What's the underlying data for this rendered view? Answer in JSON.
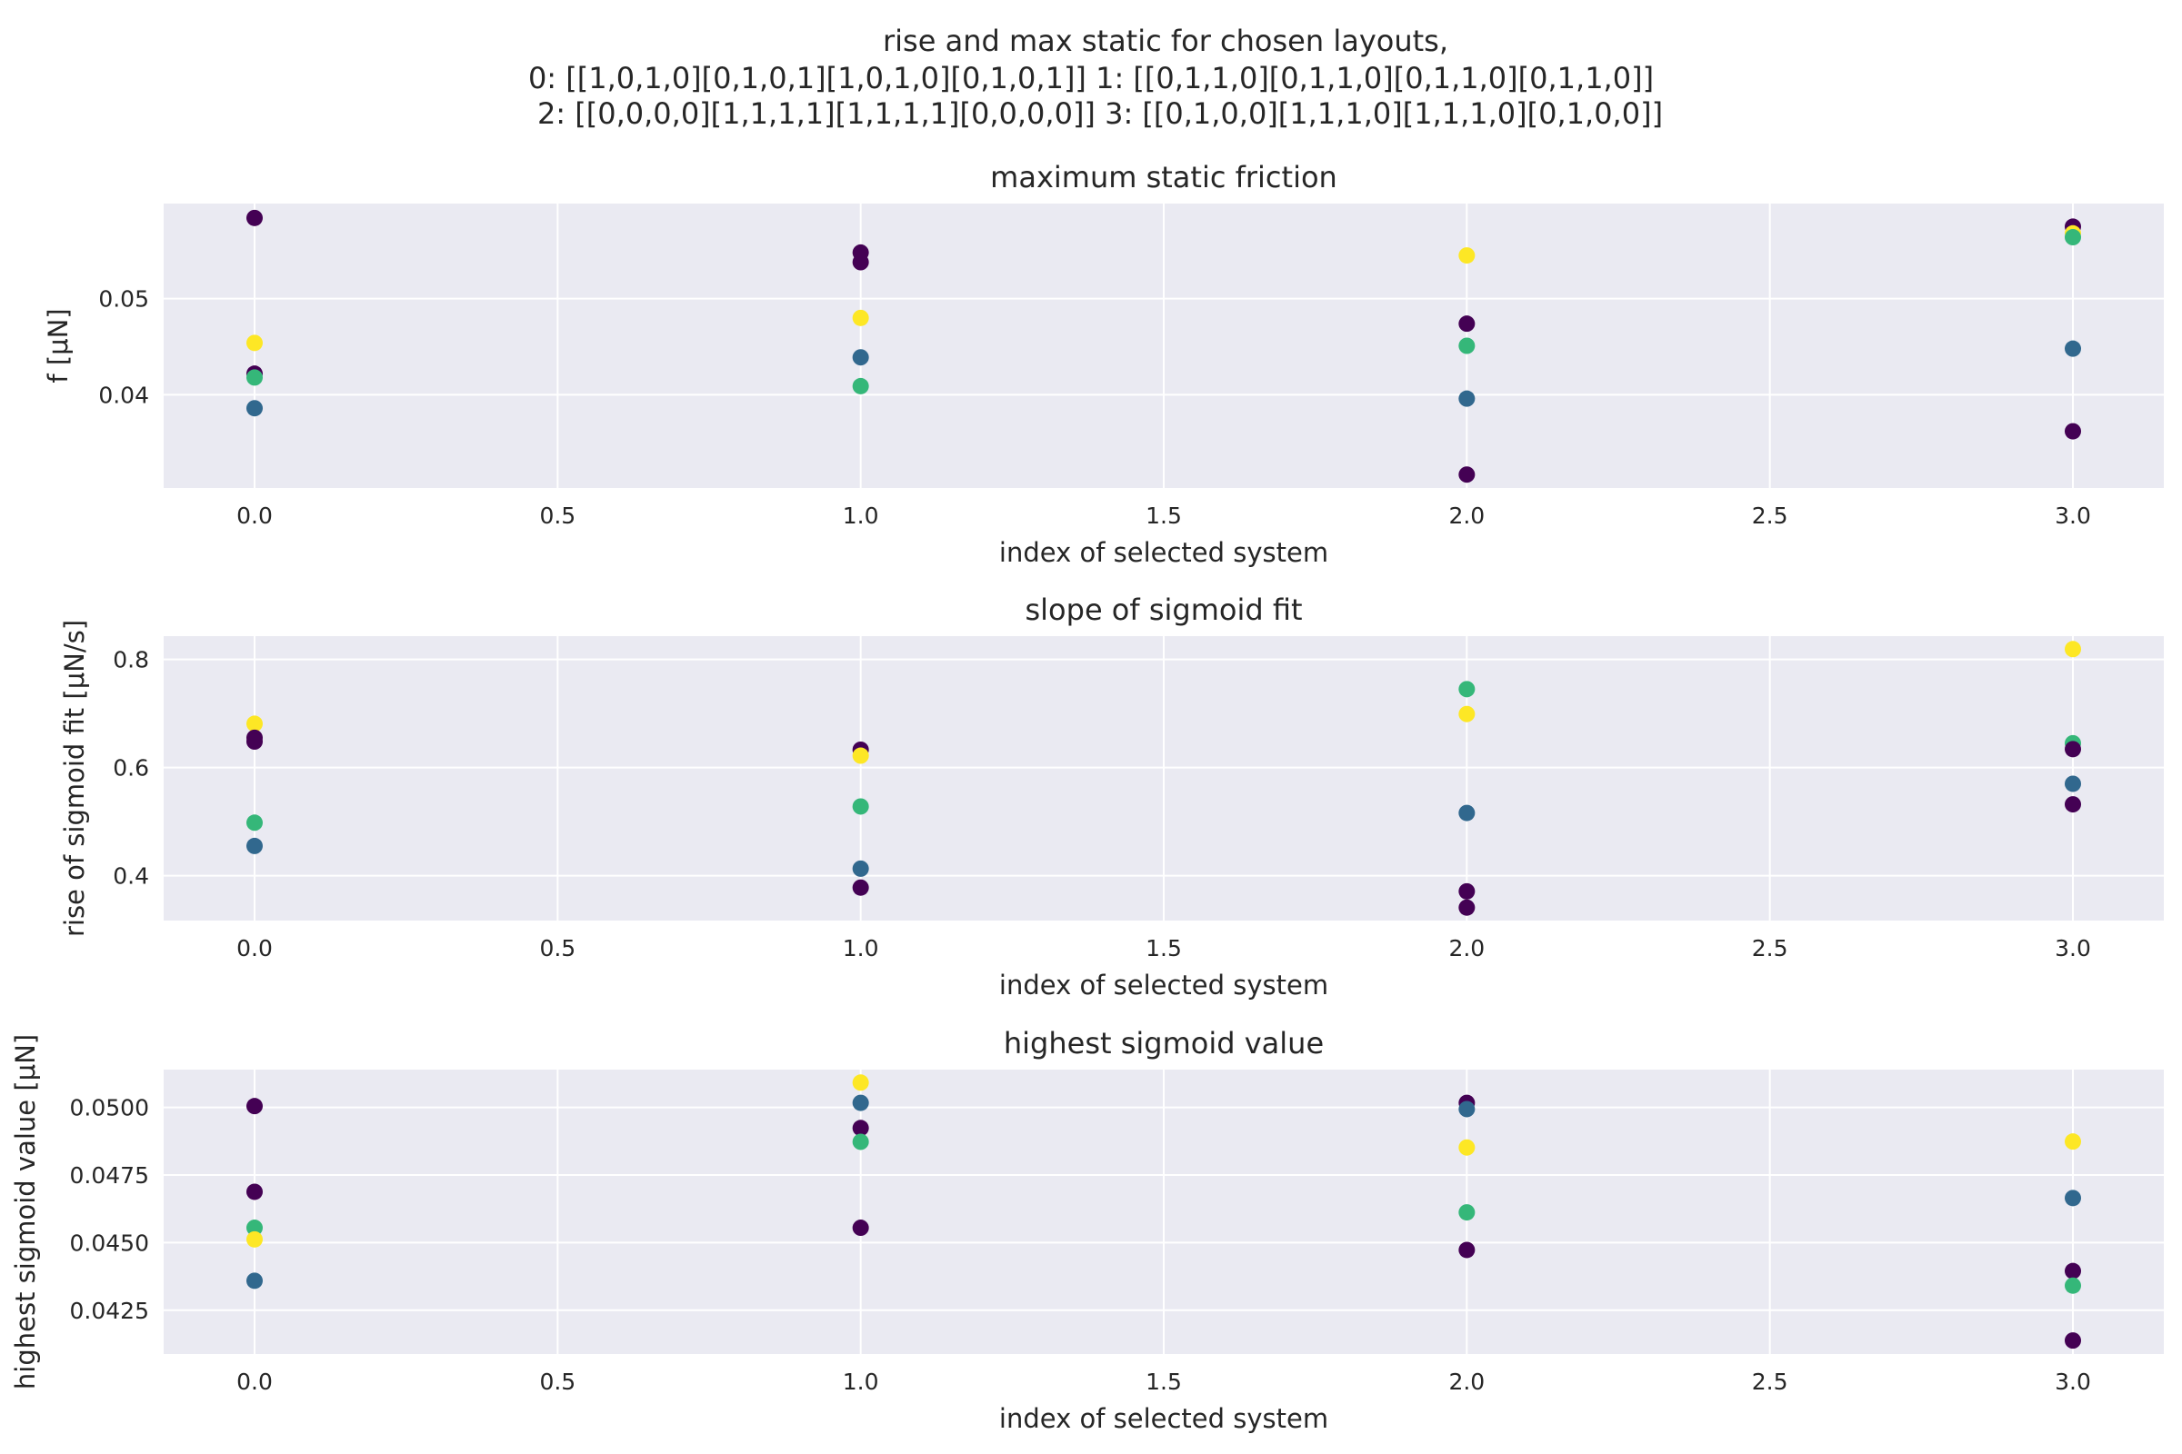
{
  "suptitle": [
    "rise and max static for chosen layouts,",
    "0: [[1,0,1,0][0,1,0,1][1,0,1,0][0,1,0,1]] 1: [[0,1,1,0][0,1,1,0][0,1,1,0][0,1,1,0]]",
    "2: [[0,0,0,0][1,1,1,1][1,1,1,1][0,0,0,0]] 3: [[0,1,0,0][1,1,1,0][1,1,1,0][0,1,0,0]]"
  ],
  "colors": {
    "axes_bg": "#eaeaf2",
    "grid": "#ffffff",
    "c0": "#440154",
    "c1": "#31688e",
    "c2": "#35b779",
    "c3": "#fde725"
  },
  "chart_data": [
    {
      "type": "scatter",
      "title": "maximum static friction",
      "xlabel": "index of selected system",
      "ylabel": "f [μN]",
      "xlim": [
        -0.15,
        3.15
      ],
      "ylim": [
        0.0303,
        0.0599
      ],
      "xticks": [
        "0.0",
        "0.5",
        "1.0",
        "1.5",
        "2.0",
        "2.5",
        "3.0"
      ],
      "yticks": [
        "0.04",
        "0.05"
      ],
      "grid": true,
      "points": [
        {
          "x": 0,
          "y": 0.0584,
          "c": "c0"
        },
        {
          "x": 0,
          "y": 0.0454,
          "c": "c3"
        },
        {
          "x": 0,
          "y": 0.0422,
          "c": "c0"
        },
        {
          "x": 0,
          "y": 0.0418,
          "c": "c2"
        },
        {
          "x": 0,
          "y": 0.0386,
          "c": "c1"
        },
        {
          "x": 1,
          "y": 0.0548,
          "c": "c0"
        },
        {
          "x": 1,
          "y": 0.0538,
          "c": "c0"
        },
        {
          "x": 1,
          "y": 0.048,
          "c": "c3"
        },
        {
          "x": 1,
          "y": 0.0439,
          "c": "c1"
        },
        {
          "x": 1,
          "y": 0.0409,
          "c": "c2"
        },
        {
          "x": 2,
          "y": 0.0545,
          "c": "c3"
        },
        {
          "x": 2,
          "y": 0.0474,
          "c": "c0"
        },
        {
          "x": 2,
          "y": 0.0451,
          "c": "c2"
        },
        {
          "x": 2,
          "y": 0.0396,
          "c": "c1"
        },
        {
          "x": 2,
          "y": 0.0317,
          "c": "c0"
        },
        {
          "x": 3,
          "y": 0.0575,
          "c": "c0"
        },
        {
          "x": 3,
          "y": 0.0568,
          "c": "c3"
        },
        {
          "x": 3,
          "y": 0.0564,
          "c": "c2"
        },
        {
          "x": 3,
          "y": 0.0448,
          "c": "c1"
        },
        {
          "x": 3,
          "y": 0.0362,
          "c": "c0"
        }
      ]
    },
    {
      "type": "scatter",
      "title": "slope of sigmoid fit",
      "xlabel": "index of selected system",
      "ylabel": "rise of sigmoid fit [μN/s]",
      "xlim": [
        -0.15,
        3.15
      ],
      "ylim": [
        0.317,
        0.843
      ],
      "xticks": [
        "0.0",
        "0.5",
        "1.0",
        "1.5",
        "2.0",
        "2.5",
        "3.0"
      ],
      "yticks": [
        "0.4",
        "0.6",
        "0.8"
      ],
      "grid": true,
      "points": [
        {
          "x": 0,
          "y": 0.681,
          "c": "c3"
        },
        {
          "x": 0,
          "y": 0.655,
          "c": "c0"
        },
        {
          "x": 0,
          "y": 0.648,
          "c": "c0"
        },
        {
          "x": 0,
          "y": 0.498,
          "c": "c2"
        },
        {
          "x": 0,
          "y": 0.455,
          "c": "c1"
        },
        {
          "x": 1,
          "y": 0.633,
          "c": "c0"
        },
        {
          "x": 1,
          "y": 0.622,
          "c": "c3"
        },
        {
          "x": 1,
          "y": 0.528,
          "c": "c2"
        },
        {
          "x": 1,
          "y": 0.413,
          "c": "c1"
        },
        {
          "x": 1,
          "y": 0.378,
          "c": "c0"
        },
        {
          "x": 2,
          "y": 0.745,
          "c": "c2"
        },
        {
          "x": 2,
          "y": 0.699,
          "c": "c3"
        },
        {
          "x": 2,
          "y": 0.516,
          "c": "c1"
        },
        {
          "x": 2,
          "y": 0.371,
          "c": "c0"
        },
        {
          "x": 2,
          "y": 0.341,
          "c": "c0"
        },
        {
          "x": 3,
          "y": 0.819,
          "c": "c3"
        },
        {
          "x": 3,
          "y": 0.645,
          "c": "c2"
        },
        {
          "x": 3,
          "y": 0.634,
          "c": "c0"
        },
        {
          "x": 3,
          "y": 0.57,
          "c": "c1"
        },
        {
          "x": 3,
          "y": 0.532,
          "c": "c0"
        }
      ]
    },
    {
      "type": "scatter",
      "title": "highest sigmoid value",
      "xlabel": "index of selected system",
      "ylabel": "highest sigmoid value [μN]",
      "xlim": [
        -0.15,
        3.15
      ],
      "ylim": [
        0.04088,
        0.0514
      ],
      "xticks": [
        "0.0",
        "0.5",
        "1.0",
        "1.5",
        "2.0",
        "2.5",
        "3.0"
      ],
      "yticks": [
        "0.0425",
        "0.0450",
        "0.0475",
        "0.0500"
      ],
      "grid": true,
      "points": [
        {
          "x": 0,
          "y": 0.05005,
          "c": "c0"
        },
        {
          "x": 0,
          "y": 0.04688,
          "c": "c0"
        },
        {
          "x": 0,
          "y": 0.04555,
          "c": "c2"
        },
        {
          "x": 0,
          "y": 0.04512,
          "c": "c3"
        },
        {
          "x": 0,
          "y": 0.04359,
          "c": "c1"
        },
        {
          "x": 1,
          "y": 0.05092,
          "c": "c3"
        },
        {
          "x": 1,
          "y": 0.05017,
          "c": "c1"
        },
        {
          "x": 1,
          "y": 0.04924,
          "c": "c0"
        },
        {
          "x": 1,
          "y": 0.04873,
          "c": "c2"
        },
        {
          "x": 1,
          "y": 0.04555,
          "c": "c0"
        },
        {
          "x": 2,
          "y": 0.05017,
          "c": "c0"
        },
        {
          "x": 2,
          "y": 0.04994,
          "c": "c1"
        },
        {
          "x": 2,
          "y": 0.04852,
          "c": "c3"
        },
        {
          "x": 2,
          "y": 0.04612,
          "c": "c2"
        },
        {
          "x": 2,
          "y": 0.04473,
          "c": "c0"
        },
        {
          "x": 3,
          "y": 0.04874,
          "c": "c3"
        },
        {
          "x": 3,
          "y": 0.04665,
          "c": "c1"
        },
        {
          "x": 3,
          "y": 0.04395,
          "c": "c0"
        },
        {
          "x": 3,
          "y": 0.04341,
          "c": "c2"
        },
        {
          "x": 3,
          "y": 0.04138,
          "c": "c0"
        }
      ]
    }
  ]
}
